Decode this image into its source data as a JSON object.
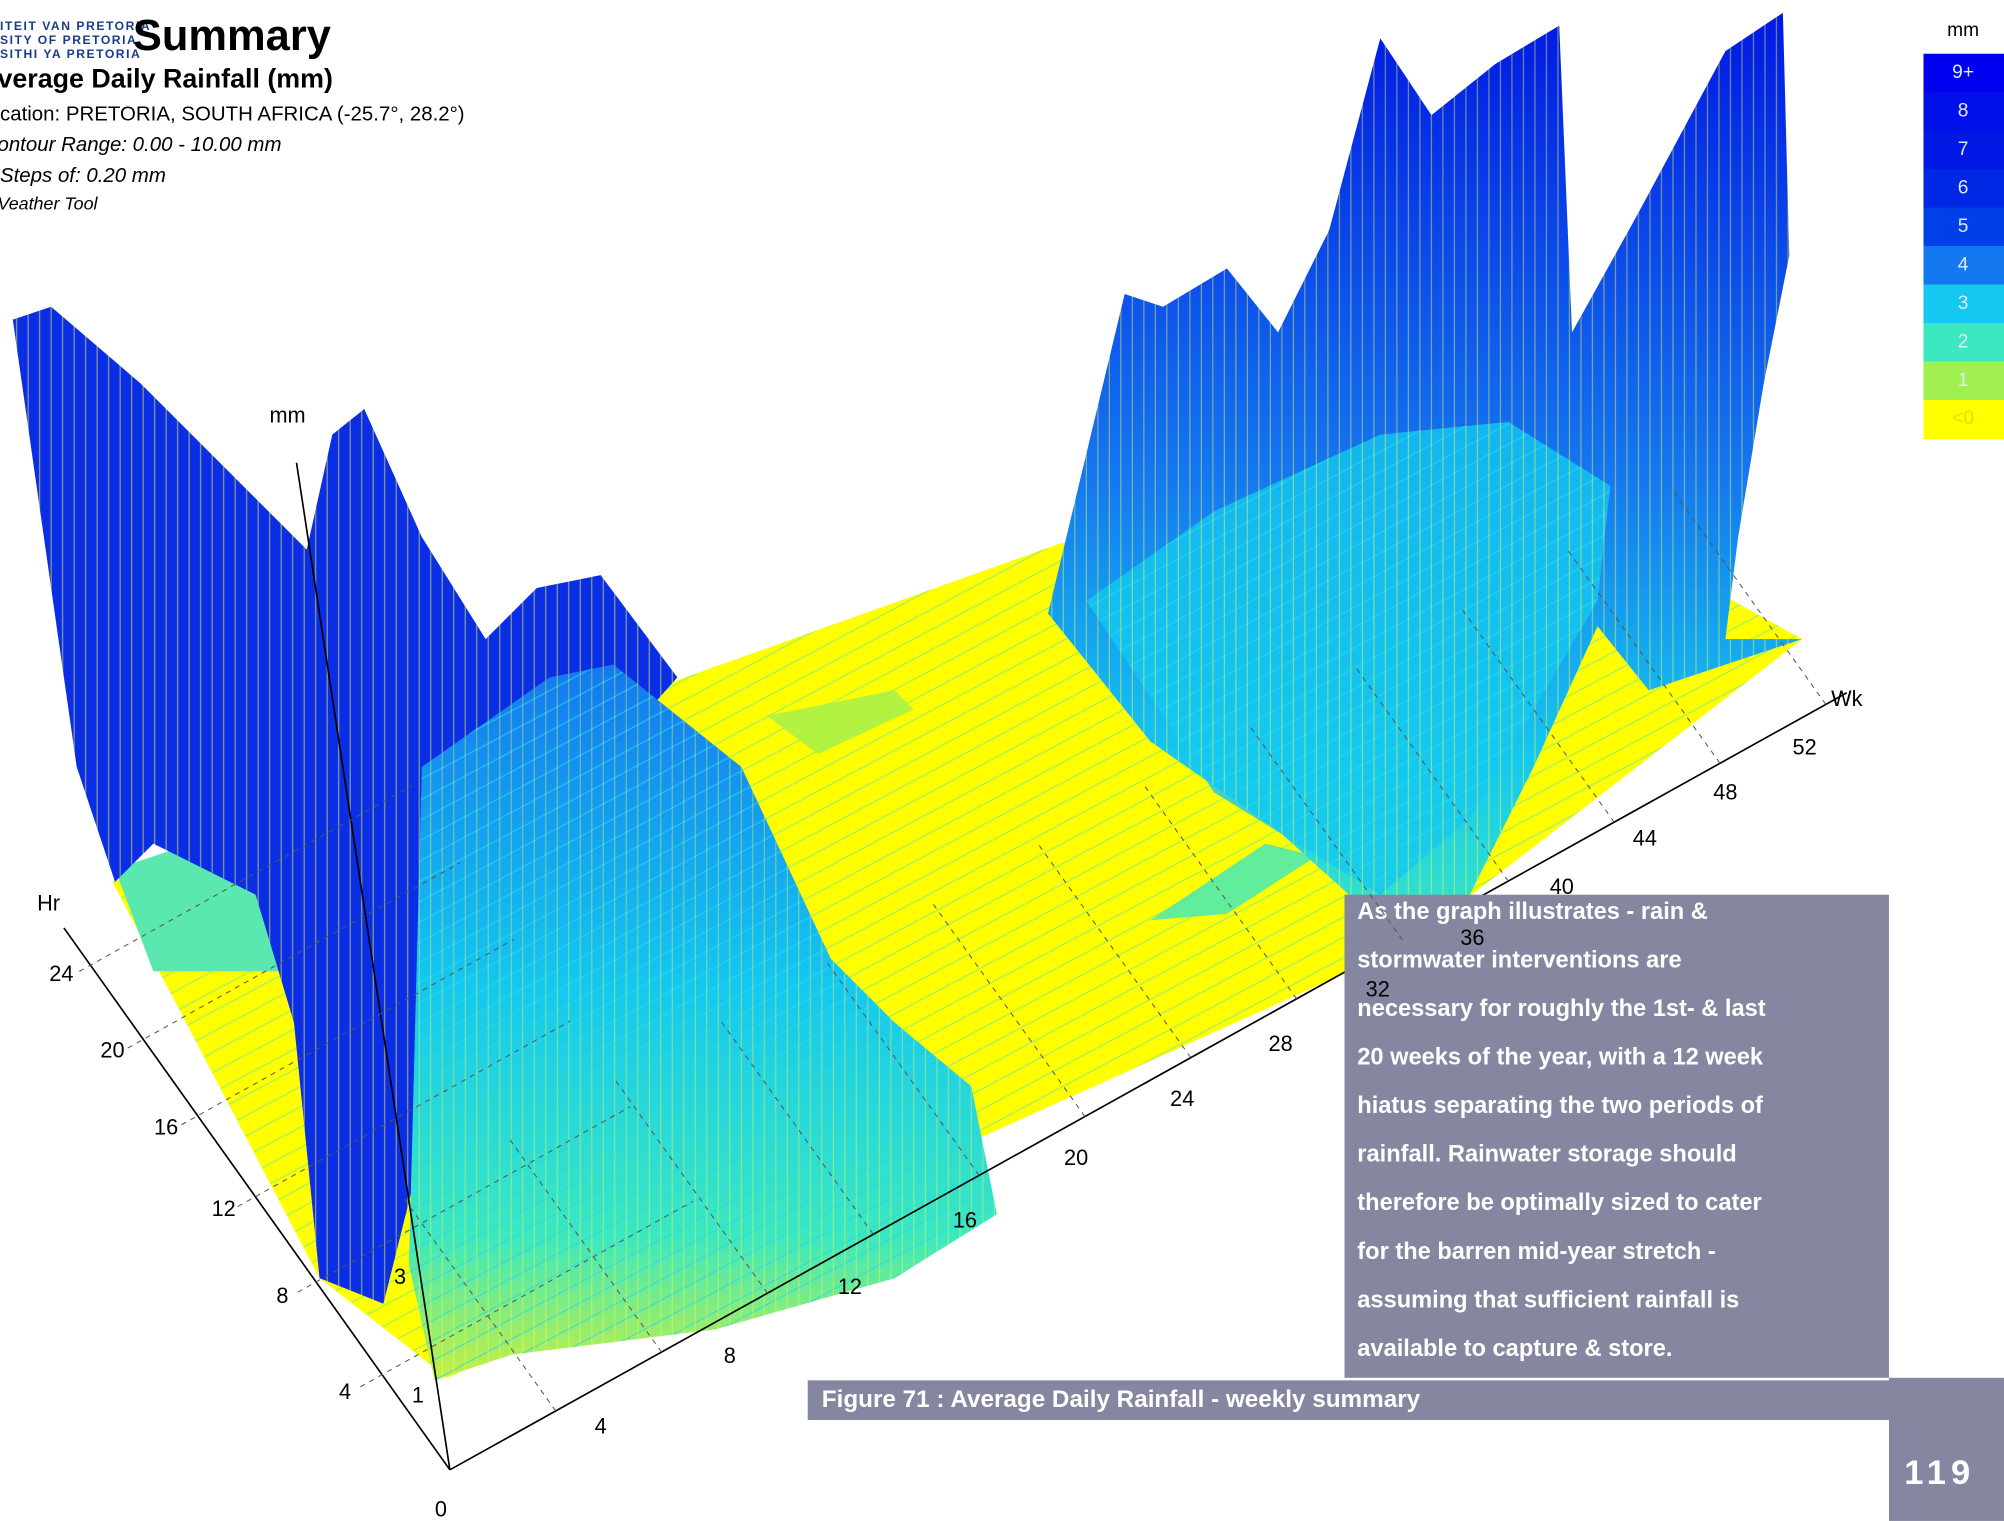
{
  "header": {
    "logo": [
      "ITEIT VAN PRETORIA",
      "SITY OF PRETORIA",
      "SITHI YA PRETORIA"
    ],
    "title": "Summary",
    "subtitle": "verage Daily Rainfall (mm)",
    "info": [
      "cation: PRETORIA,  SOUTH AFRICA (-25.7°, 28.2°)",
      "ontour Range: 0.00 - 10.00 mm",
      "Steps of: 0.20 mm",
      "Veather Tool"
    ]
  },
  "legend": {
    "unit": "mm",
    "items": [
      {
        "label": "9+",
        "color": "#0000f0"
      },
      {
        "label": "8",
        "color": "#0010e8"
      },
      {
        "label": "7",
        "color": "#0018e4"
      },
      {
        "label": "6",
        "color": "#0028e4"
      },
      {
        "label": "5",
        "color": "#0040e8"
      },
      {
        "label": "4",
        "color": "#1478f0"
      },
      {
        "label": "3",
        "color": "#14c8f0"
      },
      {
        "label": "2",
        "color": "#3ce8c0"
      },
      {
        "label": "1",
        "color": "#a0f050"
      },
      {
        "label": "<0",
        "color": "#ffff00"
      }
    ]
  },
  "axes": {
    "z_label": "mm",
    "z_ticks": [
      "3",
      "1"
    ],
    "hr_label": "Hr",
    "hr_ticks": [
      "24",
      "20",
      "16",
      "12",
      "8",
      "4"
    ],
    "wk_label": "Wk",
    "wk_ticks": [
      "0",
      "4",
      "8",
      "12",
      "16",
      "20",
      "24",
      "28",
      "32",
      "36",
      "40",
      "44",
      "48",
      "52"
    ]
  },
  "annotation": {
    "lines": [
      "As the graph illustrates - rain &",
      "stormwater interventions are",
      "necessary for roughly the 1st- & last",
      "20 weeks of the year, with a 12 week",
      "hiatus separating the two periods of",
      "rainfall. Rainwater storage should",
      "therefore be optimally sized to cater",
      "for the barren mid-year stretch -",
      "assuming that sufficient rainfall is",
      "available to capture & store."
    ]
  },
  "caption": "Figure 71 : Average Daily Rainfall - weekly summary",
  "page_number": "119"
}
